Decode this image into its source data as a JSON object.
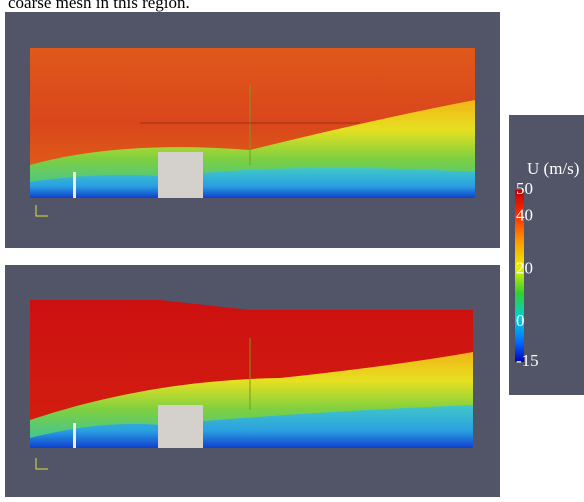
{
  "caption_fragment": "coarse mesh in this region.",
  "colorbar": {
    "title": "U (m/s)",
    "ticks": [
      50,
      40,
      20,
      0,
      -15
    ]
  }
}
